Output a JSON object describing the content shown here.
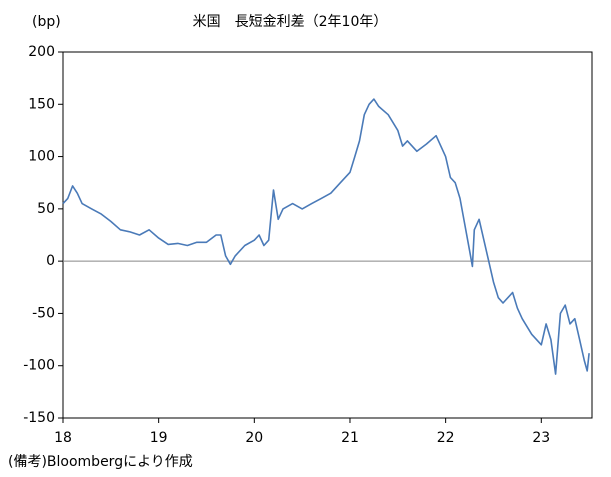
{
  "chart_data": {
    "type": "line",
    "title": "米国　長短金利差（2年10年）",
    "ylabel": "(bp)",
    "note": "(備考)Bloombergにより作成",
    "color": "#4a7ab8",
    "x": [
      18.0,
      18.05,
      18.1,
      18.15,
      18.2,
      18.3,
      18.4,
      18.5,
      18.6,
      18.7,
      18.8,
      18.9,
      19.0,
      19.1,
      19.2,
      19.3,
      19.4,
      19.5,
      19.6,
      19.65,
      19.7,
      19.75,
      19.8,
      19.9,
      20.0,
      20.05,
      20.1,
      20.15,
      20.2,
      20.25,
      20.3,
      20.4,
      20.5,
      20.6,
      20.7,
      20.8,
      20.9,
      21.0,
      21.05,
      21.1,
      21.15,
      21.2,
      21.25,
      21.3,
      21.4,
      21.5,
      21.55,
      21.6,
      21.7,
      21.8,
      21.9,
      22.0,
      22.05,
      22.1,
      22.15,
      22.2,
      22.25,
      22.28,
      22.3,
      22.35,
      22.4,
      22.45,
      22.5,
      22.55,
      22.6,
      22.7,
      22.75,
      22.8,
      22.9,
      23.0,
      23.05,
      23.1,
      23.15,
      23.2,
      23.25,
      23.3,
      23.35,
      23.4,
      23.45,
      23.48,
      23.5
    ],
    "values": [
      55,
      60,
      72,
      65,
      55,
      50,
      45,
      38,
      30,
      28,
      25,
      30,
      22,
      16,
      17,
      15,
      18,
      18,
      25,
      25,
      5,
      -3,
      5,
      15,
      20,
      25,
      15,
      20,
      68,
      40,
      50,
      55,
      50,
      55,
      60,
      65,
      75,
      85,
      100,
      115,
      140,
      150,
      155,
      148,
      140,
      125,
      110,
      115,
      105,
      112,
      120,
      100,
      80,
      75,
      60,
      35,
      10,
      -5,
      30,
      40,
      20,
      0,
      -20,
      -35,
      -40,
      -30,
      -45,
      -55,
      -70,
      -80,
      -60,
      -75,
      -108,
      -50,
      -42,
      -60,
      -55,
      -75,
      -95,
      -105,
      -88
    ],
    "xlim": [
      18,
      23.53
    ],
    "xticks": [
      18,
      19,
      20,
      21,
      22,
      23
    ],
    "ylim": [
      -150,
      200
    ],
    "yticks": [
      -150,
      -100,
      -50,
      0,
      50,
      100,
      150,
      200
    ]
  }
}
